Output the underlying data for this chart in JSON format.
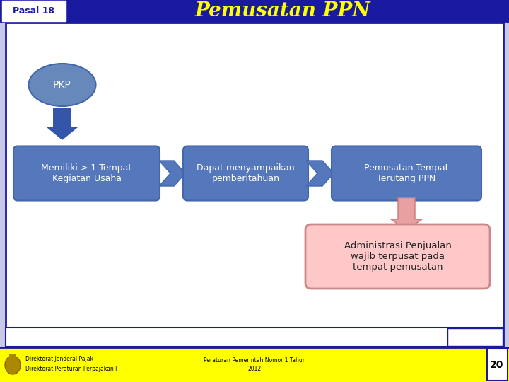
{
  "title": "Pemusatan PPN",
  "pasal_label": "Pasal 18",
  "header_bg": "#1a1aa0",
  "header_text_color": "#FFFF00",
  "pasal_bg": "#3333bb",
  "title_color": "#FFFF00",
  "main_bg": "#FFFFFF",
  "border_color": "#1a1aa0",
  "slide_bg": "#c8c8e8",
  "pkp_ellipse_color": "#6688bb",
  "pkp_ellipse_edge": "#4466aa",
  "pkp_text_color": "#FFFFFF",
  "arrow_blue_color": "#3355aa",
  "box_blue_color": "#5577bb",
  "box_edge_color": "#4466aa",
  "box_text_color": "#FFFFFF",
  "arrow_pink_color": "#e8a0a0",
  "arrow_pink_edge": "#cc7777",
  "result_box_bg": "#ffc8c8",
  "result_box_border": "#cc8888",
  "result_text_color": "#222222",
  "footer_bg": "#FFFF00",
  "footer_text_color": "#000000",
  "footer_page": "20",
  "footer_box_bg": "#FFFFFF",
  "box1_text": "Memiliki > 1 Tempat\nKegiatan Usaha",
  "box2_text": "Dapat menyampaikan\npemberitahuan",
  "box3_text": "Pemusatan Tempat\nTerutang PPN",
  "pkp_text": "PKP",
  "result_box_text": "Administrasi Penjualan\nwajib terpusat pada\ntempat pemusatan",
  "footer_left1": "Direktorat Jenderal Pajak",
  "footer_left2": "Direktorat Peraturan Perpajakan I",
  "footer_center1": "Peraturan Pemerintah Nomor 1 Tahun",
  "footer_center2": "2012"
}
